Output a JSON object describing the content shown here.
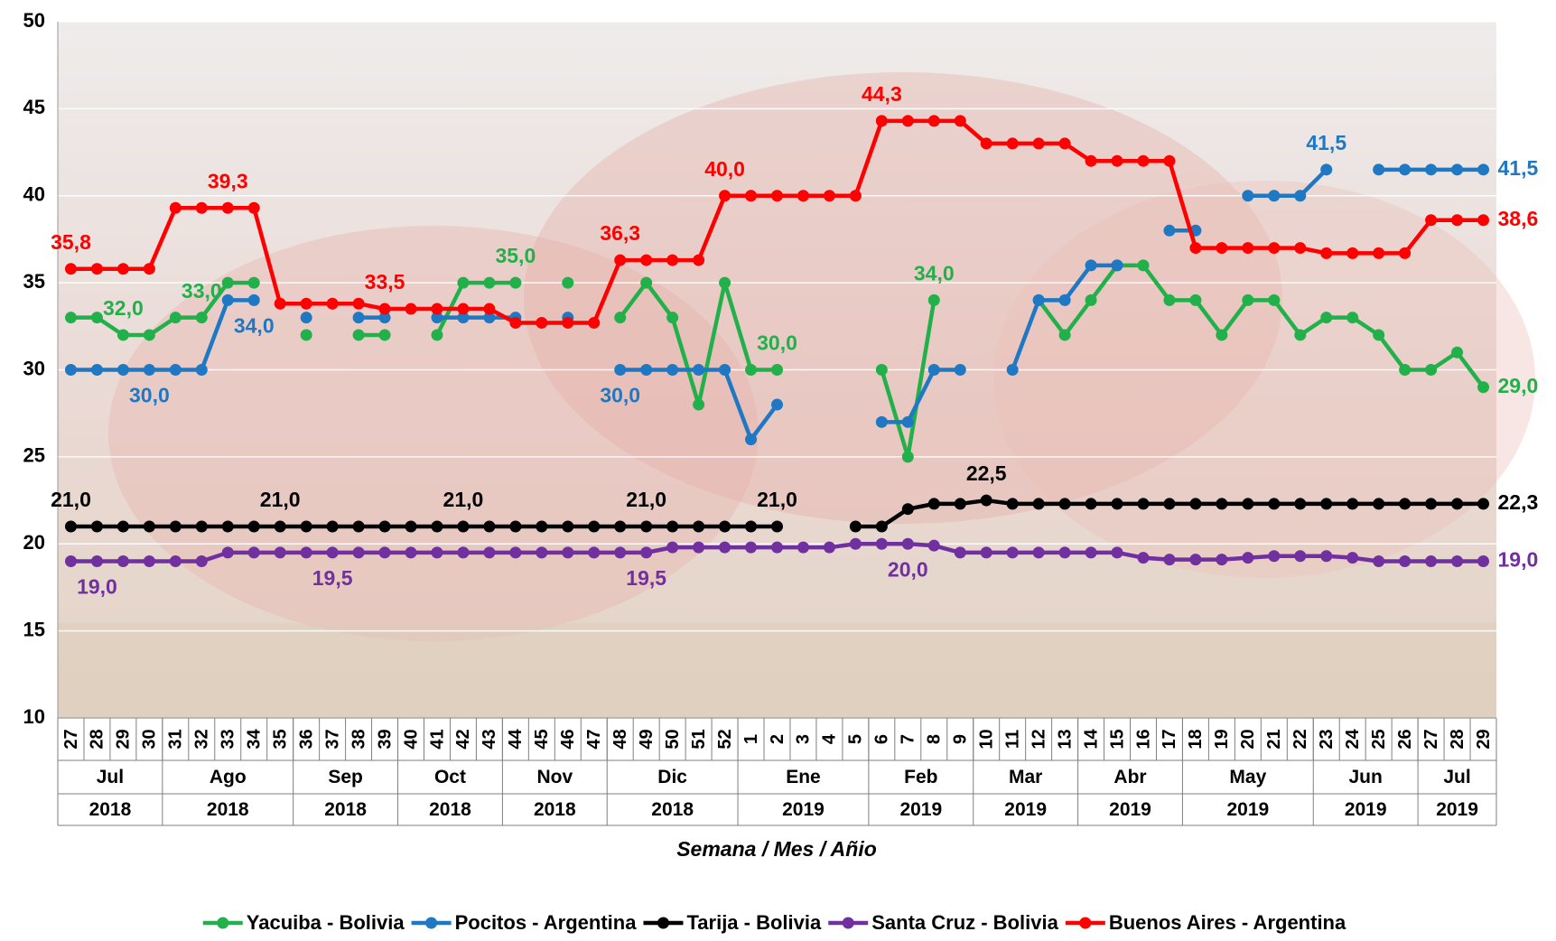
{
  "chart_data": {
    "type": "line",
    "x_axis_title": "Semana / Mes / Añio",
    "categories": [
      "27",
      "28",
      "29",
      "30",
      "31",
      "32",
      "33",
      "34",
      "35",
      "36",
      "37",
      "38",
      "39",
      "40",
      "41",
      "42",
      "43",
      "44",
      "45",
      "46",
      "47",
      "48",
      "49",
      "50",
      "51",
      "52",
      "1",
      "2",
      "3",
      "4",
      "5",
      "6",
      "7",
      "8",
      "9",
      "10",
      "11",
      "12",
      "13",
      "14",
      "15",
      "16",
      "17",
      "18",
      "19",
      "20",
      "21",
      "22",
      "23",
      "24",
      "25",
      "26",
      "27",
      "28",
      "29"
    ],
    "month_groups": [
      {
        "month": "Jul",
        "year": "2018",
        "weeks": 4
      },
      {
        "month": "Ago",
        "year": "2018",
        "weeks": 5
      },
      {
        "month": "Sep",
        "year": "2018",
        "weeks": 4
      },
      {
        "month": "Oct",
        "year": "2018",
        "weeks": 4
      },
      {
        "month": "Nov",
        "year": "2018",
        "weeks": 4
      },
      {
        "month": "Dic",
        "year": "2018",
        "weeks": 5
      },
      {
        "month": "Ene",
        "year": "2019",
        "weeks": 5
      },
      {
        "month": "Feb",
        "year": "2019",
        "weeks": 4
      },
      {
        "month": "Mar",
        "year": "2019",
        "weeks": 4
      },
      {
        "month": "Abr",
        "year": "2019",
        "weeks": 4
      },
      {
        "month": "May",
        "year": "2019",
        "weeks": 5
      },
      {
        "month": "Jun",
        "year": "2019",
        "weeks": 4
      },
      {
        "month": "Jul",
        "year": "2019",
        "weeks": 3
      }
    ],
    "ylim": [
      10,
      50
    ],
    "yticks": [
      10,
      15,
      20,
      25,
      30,
      35,
      40,
      45,
      50
    ],
    "grid": true,
    "legend": "bottom",
    "series": [
      {
        "name": "Yacuiba - Bolivia",
        "color": "#22b04b",
        "values": [
          33,
          33,
          32,
          32,
          33,
          33,
          35,
          35,
          null,
          32,
          null,
          32,
          32,
          null,
          32,
          35,
          35,
          35,
          null,
          35,
          null,
          33,
          35,
          33,
          28,
          35,
          30,
          30,
          null,
          null,
          null,
          30,
          25,
          34,
          null,
          null,
          null,
          34,
          32,
          34,
          36,
          36,
          34,
          34,
          32,
          34,
          34,
          32,
          33,
          33,
          32,
          30,
          30,
          31,
          29
        ],
        "value_labels": [
          null,
          null,
          "32,0",
          null,
          null,
          "33,0",
          null,
          null,
          null,
          null,
          null,
          null,
          null,
          null,
          null,
          null,
          null,
          "35,0",
          null,
          null,
          null,
          null,
          null,
          null,
          null,
          null,
          null,
          "30,0",
          null,
          null,
          null,
          null,
          null,
          "34,0",
          null,
          null,
          null,
          null,
          null,
          null,
          null,
          null,
          null,
          null,
          null,
          null,
          null,
          null,
          null,
          null,
          null,
          null,
          null,
          null,
          "29,0"
        ]
      },
      {
        "name": "Pocitos - Argentina",
        "color": "#1f78c4",
        "values": [
          30,
          30,
          30,
          30,
          30,
          30,
          34,
          34,
          null,
          33,
          null,
          33,
          33,
          null,
          33,
          33,
          33,
          33,
          null,
          33,
          null,
          30,
          30,
          30,
          30,
          30,
          26,
          28,
          null,
          null,
          null,
          27,
          27,
          30,
          30,
          null,
          30,
          34,
          34,
          36,
          36,
          null,
          38,
          38,
          null,
          40,
          40,
          40,
          41.5,
          null,
          41.5,
          41.5,
          41.5,
          41.5,
          41.5
        ],
        "value_labels": [
          null,
          null,
          null,
          "30,0",
          null,
          null,
          null,
          "34,0",
          null,
          null,
          null,
          null,
          null,
          null,
          null,
          null,
          null,
          null,
          null,
          null,
          null,
          "30,0",
          null,
          null,
          null,
          null,
          null,
          null,
          null,
          null,
          null,
          null,
          null,
          null,
          null,
          null,
          null,
          null,
          null,
          null,
          null,
          null,
          null,
          null,
          null,
          null,
          null,
          null,
          "41,5",
          null,
          null,
          null,
          null,
          null,
          "41,5"
        ]
      },
      {
        "name": "Tarija - Bolivia",
        "color": "#000000",
        "values": [
          21,
          21,
          21,
          21,
          21,
          21,
          21,
          21,
          21,
          21,
          21,
          21,
          21,
          21,
          21,
          21,
          21,
          21,
          21,
          21,
          21,
          21,
          21,
          21,
          21,
          21,
          21,
          21,
          null,
          null,
          21,
          21,
          22.0,
          22.3,
          22.3,
          22.5,
          22.3,
          22.3,
          22.3,
          22.3,
          22.3,
          22.3,
          22.3,
          22.3,
          22.3,
          22.3,
          22.3,
          22.3,
          22.3,
          22.3,
          22.3,
          22.3,
          22.3,
          22.3,
          22.3
        ],
        "value_labels": [
          "21,0",
          null,
          null,
          null,
          null,
          null,
          null,
          null,
          "21,0",
          null,
          null,
          null,
          null,
          null,
          null,
          "21,0",
          null,
          null,
          null,
          null,
          null,
          null,
          "21,0",
          null,
          null,
          null,
          null,
          "21,0",
          null,
          null,
          null,
          null,
          null,
          null,
          null,
          "22,5",
          null,
          null,
          null,
          null,
          null,
          null,
          null,
          null,
          null,
          null,
          null,
          null,
          null,
          null,
          null,
          null,
          null,
          null,
          "22,3"
        ]
      },
      {
        "name": "Santa Cruz - Bolivia",
        "color": "#7030a0",
        "values": [
          19,
          19,
          19,
          19,
          19,
          19,
          19.5,
          19.5,
          19.5,
          19.5,
          19.5,
          19.5,
          19.5,
          19.5,
          19.5,
          19.5,
          19.5,
          19.5,
          19.5,
          19.5,
          19.5,
          19.5,
          19.5,
          19.8,
          19.8,
          19.8,
          19.8,
          19.8,
          19.8,
          19.8,
          20,
          20,
          20,
          19.9,
          19.5,
          19.5,
          19.5,
          19.5,
          19.5,
          19.5,
          19.5,
          19.2,
          19.1,
          19.1,
          19.1,
          19.2,
          19.3,
          19.3,
          19.3,
          19.2,
          19,
          19,
          19,
          19,
          19
        ],
        "value_labels": [
          null,
          "19,0",
          null,
          null,
          null,
          null,
          null,
          null,
          null,
          null,
          "19,5",
          null,
          null,
          null,
          null,
          null,
          null,
          null,
          null,
          null,
          null,
          null,
          "19,5",
          null,
          null,
          null,
          null,
          null,
          null,
          null,
          null,
          null,
          "20,0",
          null,
          null,
          null,
          null,
          null,
          null,
          null,
          null,
          null,
          null,
          null,
          null,
          null,
          null,
          null,
          null,
          null,
          null,
          null,
          null,
          null,
          "19,0"
        ]
      },
      {
        "name": "Buenos Aires - Argentina",
        "color": "#ff0000",
        "values": [
          35.8,
          35.8,
          35.8,
          35.8,
          39.3,
          39.3,
          39.3,
          39.3,
          33.8,
          33.8,
          33.8,
          33.8,
          33.5,
          33.5,
          33.5,
          33.5,
          33.5,
          32.7,
          32.7,
          32.7,
          32.7,
          36.3,
          36.3,
          36.3,
          36.3,
          40.0,
          40.0,
          40.0,
          40.0,
          40.0,
          40.0,
          44.3,
          44.3,
          44.3,
          44.3,
          43.0,
          43.0,
          43.0,
          43.0,
          42.0,
          42.0,
          42.0,
          42.0,
          37.0,
          37.0,
          37.0,
          37.0,
          37.0,
          36.7,
          36.7,
          36.7,
          36.7,
          38.6,
          38.6,
          38.6
        ],
        "value_labels": [
          "35,8",
          null,
          null,
          null,
          null,
          null,
          "39,3",
          null,
          null,
          null,
          null,
          null,
          "33,5",
          null,
          null,
          null,
          null,
          null,
          null,
          null,
          null,
          "36,3",
          null,
          null,
          null,
          "40,0",
          null,
          null,
          null,
          null,
          null,
          "44,3",
          null,
          null,
          null,
          null,
          null,
          null,
          null,
          null,
          null,
          null,
          null,
          null,
          null,
          null,
          null,
          null,
          null,
          null,
          null,
          null,
          null,
          null,
          "38,6"
        ]
      }
    ]
  }
}
